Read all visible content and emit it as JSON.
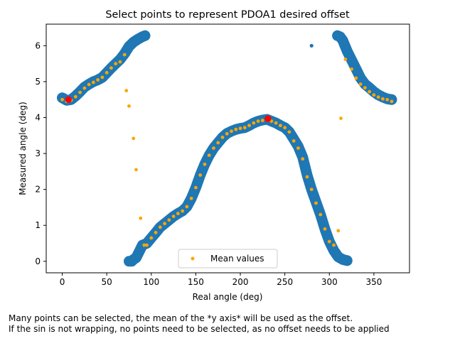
{
  "footer": {
    "line1": "Many points can be selected, the mean of the *y axis* will be used as the offset.",
    "line2": "If the sin is not wrapping, no points need to be selected, as no offset needs to be applied"
  },
  "chart_data": {
    "type": "scatter",
    "title": "Select points to represent PDOA1 desired offset",
    "xlabel": "Real angle (deg)",
    "ylabel": "Measured angle (deg)",
    "xlim": [
      -18,
      390
    ],
    "ylim": [
      -0.32,
      6.6
    ],
    "xticks": [
      0,
      50,
      100,
      150,
      200,
      250,
      300,
      350
    ],
    "yticks": [
      0,
      1,
      2,
      3,
      4,
      5,
      6
    ],
    "grid": false,
    "legend": {
      "entries": [
        "Mean values"
      ],
      "placement": "lower center"
    },
    "colors": {
      "raw": "#1f77b4",
      "mean": "#ffa500",
      "selected": "#ff0000"
    },
    "raw_band": {
      "segments": [
        {
          "x": [
            0,
            5,
            10,
            15,
            20,
            25,
            30,
            35,
            40,
            45,
            50,
            55,
            60,
            65,
            70,
            75,
            80,
            85,
            90,
            93
          ],
          "y": [
            4.55,
            4.48,
            4.5,
            4.6,
            4.72,
            4.85,
            4.93,
            5.0,
            5.05,
            5.12,
            5.25,
            5.38,
            5.5,
            5.62,
            5.78,
            5.98,
            6.1,
            6.18,
            6.25,
            6.28
          ]
        },
        {
          "x": [
            75,
            78,
            80,
            83,
            86,
            90,
            95,
            100,
            105,
            110,
            115,
            120,
            125,
            130,
            135,
            140,
            145,
            150,
            155,
            160,
            165,
            170,
            175,
            180,
            185,
            190,
            195,
            200,
            205,
            210,
            215,
            220,
            225,
            230,
            235,
            240,
            245,
            250,
            255,
            260,
            265,
            270,
            275,
            280,
            285,
            290,
            295,
            300,
            305,
            310,
            315,
            320
          ],
          "y": [
            0.0,
            0.0,
            0.05,
            0.1,
            0.25,
            0.45,
            0.5,
            0.65,
            0.8,
            0.95,
            1.05,
            1.15,
            1.25,
            1.33,
            1.4,
            1.52,
            1.75,
            2.05,
            2.4,
            2.7,
            2.95,
            3.15,
            3.3,
            3.45,
            3.56,
            3.62,
            3.67,
            3.7,
            3.72,
            3.78,
            3.85,
            3.9,
            3.93,
            3.95,
            3.9,
            3.85,
            3.78,
            3.72,
            3.6,
            3.4,
            3.2,
            2.9,
            2.4,
            2.0,
            1.65,
            1.3,
            0.9,
            0.55,
            0.3,
            0.12,
            0.05,
            0.02
          ]
        },
        {
          "x": [
            309,
            312,
            315,
            320,
            325,
            330,
            335,
            340,
            345,
            350,
            355,
            360,
            365,
            370
          ],
          "y": [
            6.28,
            6.25,
            6.15,
            5.85,
            5.6,
            5.35,
            5.1,
            4.93,
            4.83,
            4.72,
            4.63,
            4.57,
            4.52,
            4.5
          ]
        }
      ],
      "outliers": [
        {
          "x": 280,
          "y": 6.0
        }
      ]
    },
    "series": [
      {
        "name": "Mean values",
        "x": [
          0,
          5,
          10,
          15,
          20,
          25,
          30,
          35,
          40,
          45,
          50,
          55,
          60,
          65,
          70,
          72,
          75,
          80,
          83,
          88,
          92,
          95,
          100,
          105,
          110,
          115,
          120,
          125,
          130,
          135,
          140,
          145,
          150,
          155,
          160,
          165,
          170,
          175,
          180,
          185,
          190,
          195,
          200,
          205,
          210,
          215,
          220,
          225,
          230,
          235,
          240,
          245,
          250,
          255,
          260,
          265,
          270,
          275,
          280,
          285,
          290,
          295,
          300,
          305,
          310,
          313,
          318,
          325,
          330,
          335,
          340,
          345,
          350,
          355,
          360,
          365,
          370
        ],
        "y": [
          4.5,
          4.45,
          4.48,
          4.58,
          4.7,
          4.82,
          4.92,
          4.98,
          5.05,
          5.12,
          5.25,
          5.38,
          5.5,
          5.55,
          5.75,
          4.75,
          4.32,
          3.42,
          2.55,
          1.2,
          0.45,
          0.45,
          0.65,
          0.8,
          0.95,
          1.05,
          1.15,
          1.25,
          1.33,
          1.4,
          1.52,
          1.75,
          2.05,
          2.4,
          2.7,
          2.95,
          3.15,
          3.3,
          3.45,
          3.55,
          3.62,
          3.67,
          3.7,
          3.72,
          3.78,
          3.85,
          3.9,
          3.92,
          3.95,
          3.9,
          3.85,
          3.78,
          3.72,
          3.6,
          3.35,
          3.15,
          2.85,
          2.35,
          2.0,
          1.62,
          1.3,
          0.9,
          0.55,
          0.45,
          0.85,
          3.98,
          5.62,
          5.35,
          5.1,
          4.93,
          4.83,
          4.72,
          4.63,
          4.57,
          4.52,
          4.5,
          4.45
        ]
      },
      {
        "name": "",
        "x": [
          7,
          231
        ],
        "y": [
          4.5,
          3.97
        ]
      }
    ]
  }
}
